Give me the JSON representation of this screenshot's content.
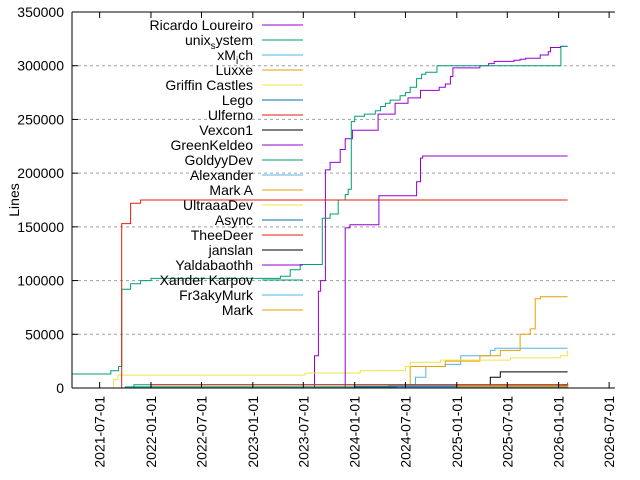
{
  "chart_data": {
    "type": "line",
    "title": "",
    "xlabel": "",
    "ylabel": "Lines",
    "x_type": "date",
    "xlim": [
      "2021-03-24",
      "2026-07-22"
    ],
    "ylim": [
      0,
      350000
    ],
    "x_ticks": [
      "2021-07-01",
      "2022-01-01",
      "2022-07-01",
      "2023-01-01",
      "2023-07-01",
      "2024-01-01",
      "2024-07-01",
      "2025-01-01",
      "2025-07-01",
      "2026-01-01",
      "2026-07-01"
    ],
    "y_ticks": [
      0,
      50000,
      100000,
      150000,
      200000,
      250000,
      300000,
      350000
    ],
    "grid": {
      "x": false,
      "y": true,
      "style": "dashed"
    },
    "legend_placement": "top-left",
    "step": true,
    "series": [
      {
        "name": "Ricardo Loureiro",
        "color": "#9400d3",
        "points": [
          [
            "2023-07-18",
            0
          ],
          [
            "2023-08-10",
            30000
          ],
          [
            "2023-08-24",
            90000
          ],
          [
            "2023-09-01",
            100000
          ],
          [
            "2023-09-18",
            203000
          ],
          [
            "2023-10-05",
            210000
          ],
          [
            "2023-11-10",
            222000
          ],
          [
            "2023-11-28",
            232000
          ],
          [
            "2023-12-24",
            240000
          ],
          [
            "2024-03-25",
            255000
          ],
          [
            "2024-05-25",
            265000
          ],
          [
            "2024-07-10",
            270000
          ],
          [
            "2024-08-24",
            277000
          ],
          [
            "2024-10-30",
            280000
          ],
          [
            "2024-11-21",
            283000
          ],
          [
            "2024-12-09",
            290000
          ],
          [
            "2024-12-18",
            298000
          ],
          [
            "2025-03-25",
            300000
          ],
          [
            "2025-04-25",
            302000
          ],
          [
            "2025-05-15",
            304000
          ],
          [
            "2025-07-25",
            305000
          ],
          [
            "2025-08-16",
            306000
          ],
          [
            "2025-09-05",
            307000
          ],
          [
            "2025-10-27",
            310000
          ],
          [
            "2025-11-25",
            313000
          ],
          [
            "2025-12-03",
            317000
          ],
          [
            "2026-01-07",
            318000
          ],
          [
            "2026-02-02",
            318000
          ]
        ]
      },
      {
        "name": "unix_system",
        "color": "#009e73",
        "points": [
          [
            "2021-03-24",
            13000
          ],
          [
            "2021-08-10",
            16000
          ],
          [
            "2021-09-07",
            20000
          ],
          [
            "2021-09-18",
            92000
          ],
          [
            "2021-10-20",
            97000
          ],
          [
            "2021-11-25",
            100000
          ],
          [
            "2022-01-01",
            102000
          ],
          [
            "2023-04-10",
            104000
          ],
          [
            "2023-05-15",
            110000
          ],
          [
            "2023-06-20",
            115000
          ],
          [
            "2023-09-07",
            158000
          ],
          [
            "2023-10-05",
            162000
          ],
          [
            "2023-11-03",
            175000
          ],
          [
            "2023-11-28",
            180000
          ],
          [
            "2023-12-09",
            185000
          ],
          [
            "2023-12-20",
            248000
          ],
          [
            "2024-01-01",
            253000
          ],
          [
            "2024-02-05",
            255000
          ],
          [
            "2024-03-15",
            258000
          ],
          [
            "2024-04-03",
            262000
          ],
          [
            "2024-04-20",
            265000
          ],
          [
            "2024-05-07",
            268000
          ],
          [
            "2024-06-12",
            272000
          ],
          [
            "2024-07-01",
            275000
          ],
          [
            "2024-07-18",
            280000
          ],
          [
            "2024-08-10",
            288000
          ],
          [
            "2024-08-28",
            292000
          ],
          [
            "2024-09-12",
            294000
          ],
          [
            "2024-10-22",
            300000
          ],
          [
            "2026-01-07",
            300000
          ],
          [
            "2026-01-09",
            318000
          ],
          [
            "2026-02-02",
            318000
          ]
        ]
      },
      {
        "name": "xM_ich",
        "color": "#56b4e9",
        "points": [
          [
            "2024-04-10",
            0
          ],
          [
            "2024-06-12",
            3000
          ],
          [
            "2024-08-06",
            10000
          ],
          [
            "2024-09-12",
            20000
          ],
          [
            "2024-11-20",
            22000
          ],
          [
            "2025-01-15",
            30000
          ],
          [
            "2025-05-01",
            35000
          ],
          [
            "2025-05-18",
            37000
          ],
          [
            "2026-02-02",
            37000
          ]
        ]
      },
      {
        "name": "Luxxe",
        "color": "#e69f00",
        "points": [
          [
            "2024-06-01",
            2000
          ],
          [
            "2024-07-18",
            20000
          ],
          [
            "2024-11-21",
            25000
          ],
          [
            "2025-03-25",
            30000
          ],
          [
            "2025-06-06",
            35000
          ],
          [
            "2025-08-16",
            50000
          ],
          [
            "2025-09-21",
            55000
          ],
          [
            "2025-10-09",
            83000
          ],
          [
            "2025-10-27",
            85000
          ],
          [
            "2026-02-02",
            85000
          ]
        ]
      },
      {
        "name": "Griffin Castles",
        "color": "#f0e442",
        "points": [
          [
            "2021-08-01",
            0
          ],
          [
            "2021-08-20",
            8000
          ],
          [
            "2021-09-05",
            12000
          ],
          [
            "2023-06-28",
            12000
          ],
          [
            "2023-07-07",
            14000
          ],
          [
            "2024-01-21",
            16000
          ],
          [
            "2024-07-01",
            20000
          ],
          [
            "2024-07-18",
            24000
          ],
          [
            "2024-11-04",
            26000
          ],
          [
            "2025-07-12",
            28000
          ],
          [
            "2026-01-07",
            30000
          ],
          [
            "2026-02-02",
            35000
          ]
        ]
      },
      {
        "name": "Lego",
        "color": "#0072b2",
        "points": [
          [
            "2025-12-01",
            0
          ],
          [
            "2026-01-20",
            3000
          ],
          [
            "2026-02-02",
            5000
          ]
        ]
      },
      {
        "name": "Ulferno",
        "color": "#e51e10",
        "points": [
          [
            "2021-09-16",
            0
          ],
          [
            "2021-09-18",
            153000
          ],
          [
            "2021-10-20",
            172000
          ],
          [
            "2021-11-25",
            175000
          ],
          [
            "2026-02-02",
            175000
          ]
        ]
      },
      {
        "name": "Vexcon1",
        "color": "#000000",
        "points": [
          [
            "2025-04-20",
            0
          ],
          [
            "2025-05-01",
            10000
          ],
          [
            "2025-06-06",
            15000
          ],
          [
            "2026-02-02",
            15000
          ]
        ]
      },
      {
        "name": "GreenKeldeo",
        "color": "#9400d3",
        "points": [
          [
            "2023-11-25",
            0
          ],
          [
            "2023-11-28",
            149000
          ],
          [
            "2023-12-15",
            152000
          ],
          [
            "2024-03-28",
            179000
          ],
          [
            "2024-08-10",
            192000
          ],
          [
            "2024-08-24",
            214000
          ],
          [
            "2024-09-01",
            216000
          ],
          [
            "2026-02-02",
            216000
          ]
        ]
      },
      {
        "name": "GoldyyDev",
        "color": "#009e73",
        "points": [
          [
            "2021-09-01",
            0
          ],
          [
            "2021-11-01",
            3000
          ],
          [
            "2026-02-02",
            4000
          ]
        ]
      },
      {
        "name": "Alexander",
        "color": "#56b4e9",
        "points": [
          [
            "2024-02-01",
            0
          ],
          [
            "2024-05-01",
            2000
          ],
          [
            "2026-02-02",
            3000
          ]
        ]
      },
      {
        "name": "Mark A",
        "color": "#e69f00",
        "points": [
          [
            "2024-06-01",
            0
          ],
          [
            "2025-01-01",
            2000
          ],
          [
            "2026-02-02",
            3000
          ]
        ]
      },
      {
        "name": "UltraaaDev",
        "color": "#f0e442",
        "points": [
          [
            "2023-07-01",
            0
          ],
          [
            "2024-01-01",
            1000
          ],
          [
            "2026-02-02",
            1500
          ]
        ]
      },
      {
        "name": "Async",
        "color": "#0072b2",
        "points": [
          [
            "2023-08-01",
            0
          ],
          [
            "2024-01-01",
            1500
          ],
          [
            "2026-02-02",
            2000
          ]
        ]
      },
      {
        "name": "TheeDeer",
        "color": "#e51e10",
        "points": [
          [
            "2021-12-01",
            0
          ],
          [
            "2022-01-01",
            3000
          ],
          [
            "2026-02-02",
            3500
          ]
        ]
      },
      {
        "name": "janslan",
        "color": "#000000",
        "points": [
          [
            "2025-12-01",
            0
          ],
          [
            "2026-01-10",
            1500
          ],
          [
            "2026-02-02",
            2000
          ]
        ]
      },
      {
        "name": "Yaldabaothh",
        "color": "#9400d3",
        "points": [
          [
            "2023-07-01",
            0
          ],
          [
            "2024-01-01",
            1000
          ],
          [
            "2026-02-02",
            1000
          ]
        ]
      },
      {
        "name": "Xander Karpov",
        "color": "#009e73",
        "points": [
          [
            "2021-09-01",
            0
          ],
          [
            "2021-10-01",
            1000
          ],
          [
            "2026-02-02",
            1000
          ]
        ]
      },
      {
        "name": "Fr3akyMurk",
        "color": "#56b4e9",
        "points": [
          [
            "2024-03-01",
            0
          ],
          [
            "2024-06-01",
            800
          ],
          [
            "2026-02-02",
            800
          ]
        ]
      },
      {
        "name": "Mark",
        "color": "#e69f00",
        "points": [
          [
            "2024-08-01",
            0
          ],
          [
            "2025-01-01",
            1500
          ],
          [
            "2026-02-02",
            2500
          ]
        ]
      }
    ]
  }
}
